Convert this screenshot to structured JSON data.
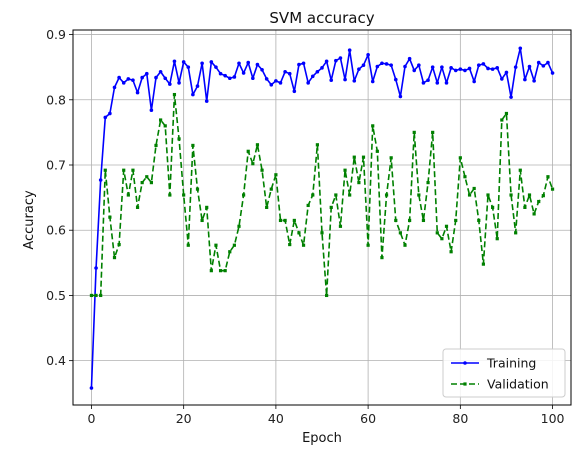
{
  "chart_data": {
    "type": "line",
    "title": "SVM accuracy",
    "xlabel": "Epoch",
    "ylabel": "Accuracy",
    "xlim": [
      -4,
      104
    ],
    "ylim": [
      0.332,
      0.907
    ],
    "x_ticks": [
      0,
      20,
      40,
      60,
      80,
      100
    ],
    "y_ticks": [
      0.4,
      0.5,
      0.6,
      0.7,
      0.8,
      0.9
    ],
    "grid": true,
    "legend_position": "bottom-right",
    "series": [
      {
        "name": "Training",
        "color": "#0000ff",
        "line_style": "solid",
        "marker": "dot",
        "values": [
          0.358,
          0.542,
          0.677,
          0.773,
          0.779,
          0.819,
          0.834,
          0.826,
          0.832,
          0.83,
          0.811,
          0.834,
          0.84,
          0.784,
          0.834,
          0.843,
          0.833,
          0.824,
          0.859,
          0.826,
          0.858,
          0.85,
          0.808,
          0.821,
          0.856,
          0.798,
          0.858,
          0.85,
          0.84,
          0.837,
          0.833,
          0.835,
          0.856,
          0.841,
          0.857,
          0.833,
          0.854,
          0.846,
          0.832,
          0.823,
          0.829,
          0.826,
          0.843,
          0.84,
          0.813,
          0.854,
          0.856,
          0.826,
          0.836,
          0.843,
          0.849,
          0.859,
          0.83,
          0.86,
          0.864,
          0.831,
          0.876,
          0.829,
          0.847,
          0.853,
          0.869,
          0.828,
          0.851,
          0.856,
          0.855,
          0.853,
          0.831,
          0.805,
          0.851,
          0.863,
          0.845,
          0.853,
          0.826,
          0.83,
          0.85,
          0.826,
          0.85,
          0.826,
          0.849,
          0.845,
          0.847,
          0.845,
          0.848,
          0.828,
          0.853,
          0.855,
          0.848,
          0.847,
          0.849,
          0.832,
          0.842,
          0.804,
          0.85,
          0.879,
          0.831,
          0.851,
          0.829,
          0.857,
          0.852,
          0.857,
          0.841
        ]
      },
      {
        "name": "Validation",
        "color": "#008000",
        "line_style": "dashed",
        "marker": "square",
        "values": [
          0.5,
          0.5,
          0.5,
          0.692,
          0.62,
          0.558,
          0.578,
          0.692,
          0.654,
          0.692,
          0.635,
          0.673,
          0.682,
          0.673,
          0.73,
          0.769,
          0.76,
          0.654,
          0.808,
          0.74,
          0.654,
          0.577,
          0.73,
          0.663,
          0.615,
          0.635,
          0.538,
          0.577,
          0.538,
          0.538,
          0.567,
          0.577,
          0.606,
          0.654,
          0.721,
          0.702,
          0.731,
          0.692,
          0.635,
          0.663,
          0.685,
          0.615,
          0.615,
          0.578,
          0.615,
          0.596,
          0.577,
          0.638,
          0.654,
          0.731,
          0.596,
          0.5,
          0.635,
          0.654,
          0.606,
          0.692,
          0.654,
          0.712,
          0.673,
          0.712,
          0.577,
          0.76,
          0.721,
          0.558,
          0.654,
          0.711,
          0.615,
          0.596,
          0.577,
          0.615,
          0.75,
          0.654,
          0.615,
          0.673,
          0.75,
          0.596,
          0.587,
          0.606,
          0.567,
          0.615,
          0.711,
          0.682,
          0.654,
          0.664,
          0.615,
          0.548,
          0.654,
          0.635,
          0.587,
          0.769,
          0.779,
          0.654,
          0.596,
          0.692,
          0.635,
          0.654,
          0.625,
          0.644,
          0.653,
          0.682,
          0.663
        ]
      }
    ]
  }
}
